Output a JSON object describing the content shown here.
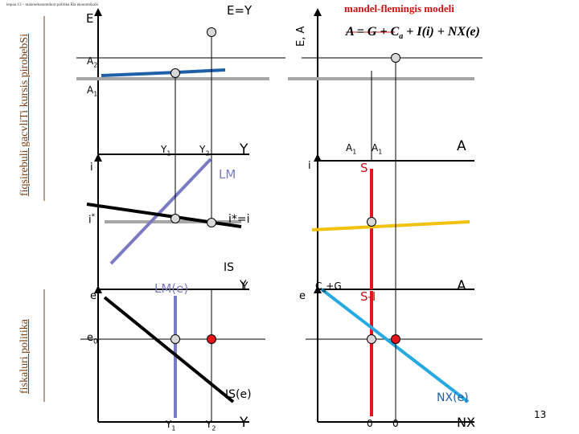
{
  "header": {
    "top_caption": "lequia 13 – makroekonomikuri politika Ria ekonomikaSi"
  },
  "side_labels": {
    "upper": "fiqsirebuli gacvliTi kursis pirobebSi",
    "lower": "fiskaluri politika"
  },
  "panel_keynesian_cross": {
    "y_axis": "E",
    "line_label": "E=Y",
    "level_2": "A",
    "level_2_sub": "2",
    "level_1": "A",
    "level_1_sub": "1",
    "tick_1": "Y",
    "tick_1_sub": "1",
    "tick_2": "Y",
    "tick_2_sub": "2",
    "x_axis": "Y"
  },
  "panel_model": {
    "title": "mandel-flemingis modeli",
    "y_axis": "E, A",
    "equation": {
      "lhs": "A = G",
      "plus1": " + C",
      "sub_a": "a",
      "plus2": " + I",
      "arg_i": "(i)",
      "plus3": " + NX",
      "arg_e": "(e)"
    }
  },
  "panel_is_lm": {
    "y_axis": "i",
    "lm_label": "LM",
    "istar_label": "i",
    "istar_sup": "*",
    "bp_label": "i*=i",
    "is_label": "IS",
    "x_axis": "Y"
  },
  "panel_savings": {
    "y_axis": "i",
    "tick_1": "A",
    "tick_1_sub": "1",
    "tick_2": "A",
    "tick_2_sub": "1",
    "x_axis": "A",
    "s_label": "S"
  },
  "panel_lm_e": {
    "y_axis": "e",
    "lm_label": "LM(e)",
    "x_axis": "Y",
    "e0_label": "e",
    "e0_sub": "0",
    "is_label": "IS(e)",
    "tick_1": "Y",
    "tick_1_sub": "1",
    "tick_2": "Y",
    "tick_2_sub": "2",
    "x_axis_bottom": "Y"
  },
  "panel_nx": {
    "y_axis": "e",
    "ca_label": "C",
    "ca_sub": "a",
    "ca_rest": "+G",
    "si_label": "S-I",
    "x_axis": "A",
    "nx_label": "NX(e)",
    "tick_1": "0",
    "tick_2": "0",
    "x_axis_bottom": "NX"
  },
  "page_number": "13",
  "colors": {
    "axis": "#000000",
    "blue_line": "#1f5fa8",
    "gray_line": "#a6a6a6",
    "lm_line": "#7b7bc4",
    "s_line": "#e8141c",
    "yellow_line": "#f2c20f",
    "nx_line": "#27a9e1",
    "red_dot": "#e8141c",
    "side_text": "#7a3c10",
    "red_text": "#cc1111"
  }
}
